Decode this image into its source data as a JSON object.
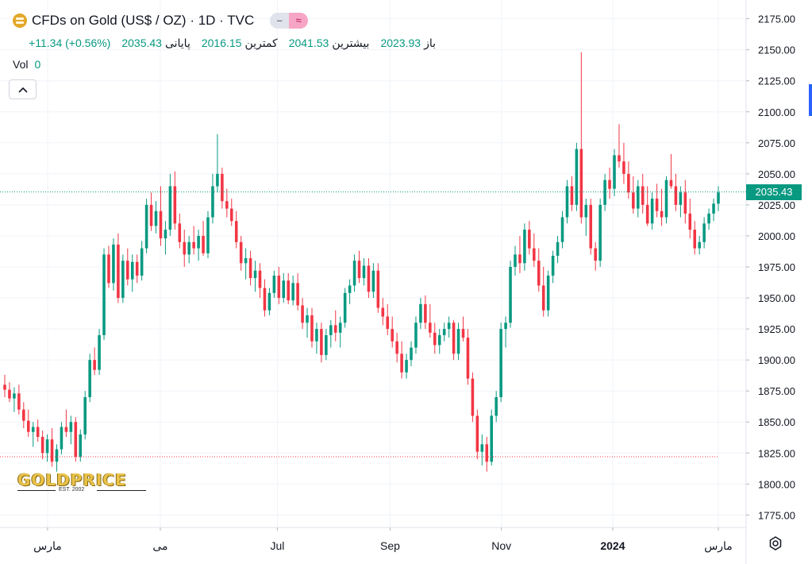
{
  "header": {
    "symbol_title": "CFDs on Gold (US$ / OZ) · 1D · TVC",
    "ohlc": {
      "open_label": "باز",
      "open_value": "2023.93",
      "high_label": "بیشترین",
      "high_value": "2041.53",
      "low_label": "کمترین",
      "low_value": "2016.15",
      "close_label": "پایانی",
      "close_value": "2035.43",
      "change": "+11.34 (+0.56%)"
    },
    "vol_label": "Vol",
    "vol_value": "0",
    "collapse_icon": "chevron-up-icon"
  },
  "price_tag": "2035.43",
  "watermark": {
    "word": "GOLDPRICE",
    "est": "EST. 2002"
  },
  "colors": {
    "up": "#089981",
    "down": "#f23645",
    "grid": "#f0f3fa",
    "text": "#131722"
  },
  "chart_data": {
    "type": "candlestick",
    "y_ticks": [
      "2175.00",
      "2150.00",
      "2125.00",
      "2100.00",
      "2075.00",
      "2050.00",
      "2025.00",
      "2000.00",
      "1975.00",
      "1950.00",
      "1925.00",
      "1900.00",
      "1875.00",
      "1850.00",
      "1825.00",
      "1800.00",
      "1775.00"
    ],
    "ylim": [
      1765,
      2185
    ],
    "x_ticks": [
      {
        "label": "مارس",
        "t": 0.06
      },
      {
        "label": "می",
        "t": 0.218
      },
      {
        "label": "Jul",
        "t": 0.382
      },
      {
        "label": "Sep",
        "t": 0.54
      },
      {
        "label": "Nov",
        "t": 0.696
      },
      {
        "label": "2024",
        "t": 0.852,
        "bold": true
      },
      {
        "label": "مارس",
        "t": 1.0
      }
    ],
    "last_price": 2035.43,
    "low_marker": 1822,
    "candles": [
      [
        1880,
        1888,
        1870,
        1876
      ],
      [
        1876,
        1882,
        1866,
        1869
      ],
      [
        1869,
        1878,
        1858,
        1873
      ],
      [
        1873,
        1880,
        1856,
        1860
      ],
      [
        1860,
        1866,
        1845,
        1851
      ],
      [
        1851,
        1860,
        1838,
        1842
      ],
      [
        1842,
        1850,
        1830,
        1846
      ],
      [
        1846,
        1852,
        1834,
        1838
      ],
      [
        1838,
        1843,
        1820,
        1825
      ],
      [
        1825,
        1840,
        1818,
        1836
      ],
      [
        1836,
        1845,
        1814,
        1818
      ],
      [
        1818,
        1832,
        1810,
        1828
      ],
      [
        1828,
        1850,
        1824,
        1846
      ],
      [
        1846,
        1860,
        1838,
        1842
      ],
      [
        1842,
        1855,
        1832,
        1850
      ],
      [
        1850,
        1854,
        1818,
        1822
      ],
      [
        1822,
        1844,
        1818,
        1840
      ],
      [
        1840,
        1875,
        1836,
        1870
      ],
      [
        1870,
        1905,
        1866,
        1900
      ],
      [
        1900,
        1910,
        1888,
        1892
      ],
      [
        1892,
        1925,
        1888,
        1920
      ],
      [
        1920,
        1990,
        1916,
        1985
      ],
      [
        1985,
        1992,
        1958,
        1962
      ],
      [
        1962,
        1998,
        1956,
        1993
      ],
      [
        1993,
        2002,
        1946,
        1950
      ],
      [
        1950,
        1985,
        1946,
        1980
      ],
      [
        1980,
        1990,
        1960,
        1965
      ],
      [
        1965,
        1985,
        1955,
        1979
      ],
      [
        1979,
        1985,
        1962,
        1968
      ],
      [
        1968,
        1996,
        1964,
        1990
      ],
      [
        1990,
        2030,
        1986,
        2025
      ],
      [
        2025,
        2035,
        2004,
        2008
      ],
      [
        2008,
        2028,
        2002,
        2020
      ],
      [
        2020,
        2040,
        1992,
        1998
      ],
      [
        1998,
        2012,
        1985,
        2005
      ],
      [
        2005,
        2050,
        2000,
        2040
      ],
      [
        2040,
        2052,
        2005,
        2010
      ],
      [
        2010,
        2018,
        1990,
        1995
      ],
      [
        1995,
        2005,
        1975,
        1985
      ],
      [
        1985,
        2000,
        1978,
        1995
      ],
      [
        1995,
        2008,
        1985,
        1990
      ],
      [
        1990,
        2005,
        1980,
        2000
      ],
      [
        2000,
        2012,
        1984,
        1986
      ],
      [
        1986,
        2020,
        1982,
        2015
      ],
      [
        2015,
        2050,
        2010,
        2040
      ],
      [
        2040,
        2082,
        2035,
        2050
      ],
      [
        2050,
        2055,
        2022,
        2028
      ],
      [
        2028,
        2038,
        2015,
        2022
      ],
      [
        2022,
        2030,
        2008,
        2012
      ],
      [
        2012,
        2020,
        1990,
        1995
      ],
      [
        1995,
        2000,
        1972,
        1978
      ],
      [
        1978,
        1990,
        1965,
        1982
      ],
      [
        1982,
        1988,
        1960,
        1966
      ],
      [
        1966,
        1980,
        1955,
        1972
      ],
      [
        1972,
        1978,
        1950,
        1958
      ],
      [
        1958,
        1965,
        1935,
        1940
      ],
      [
        1940,
        1958,
        1936,
        1954
      ],
      [
        1954,
        1972,
        1950,
        1968
      ],
      [
        1968,
        1975,
        1945,
        1950
      ],
      [
        1950,
        1970,
        1946,
        1964
      ],
      [
        1964,
        1970,
        1945,
        1948
      ],
      [
        1948,
        1968,
        1944,
        1962
      ],
      [
        1962,
        1970,
        1940,
        1944
      ],
      [
        1944,
        1950,
        1925,
        1930
      ],
      [
        1930,
        1942,
        1918,
        1936
      ],
      [
        1936,
        1942,
        1910,
        1915
      ],
      [
        1915,
        1930,
        1905,
        1925
      ],
      [
        1925,
        1930,
        1898,
        1904
      ],
      [
        1904,
        1925,
        1900,
        1920
      ],
      [
        1920,
        1932,
        1910,
        1928
      ],
      [
        1928,
        1940,
        1915,
        1922
      ],
      [
        1922,
        1935,
        1910,
        1930
      ],
      [
        1930,
        1958,
        1926,
        1954
      ],
      [
        1954,
        1965,
        1945,
        1960
      ],
      [
        1960,
        1985,
        1955,
        1980
      ],
      [
        1980,
        1988,
        1962,
        1966
      ],
      [
        1966,
        1982,
        1960,
        1976
      ],
      [
        1976,
        1982,
        1950,
        1955
      ],
      [
        1955,
        1978,
        1950,
        1972
      ],
      [
        1972,
        1978,
        1938,
        1942
      ],
      [
        1942,
        1950,
        1928,
        1935
      ],
      [
        1935,
        1945,
        1920,
        1925
      ],
      [
        1925,
        1935,
        1910,
        1915
      ],
      [
        1915,
        1922,
        1898,
        1905
      ],
      [
        1905,
        1915,
        1885,
        1890
      ],
      [
        1890,
        1905,
        1885,
        1900
      ],
      [
        1900,
        1915,
        1895,
        1910
      ],
      [
        1910,
        1935,
        1905,
        1930
      ],
      [
        1930,
        1950,
        1925,
        1945
      ],
      [
        1945,
        1952,
        1925,
        1930
      ],
      [
        1930,
        1945,
        1918,
        1922
      ],
      [
        1922,
        1930,
        1905,
        1912
      ],
      [
        1912,
        1925,
        1905,
        1920
      ],
      [
        1920,
        1930,
        1915,
        1925
      ],
      [
        1925,
        1935,
        1918,
        1930
      ],
      [
        1930,
        1932,
        1900,
        1905
      ],
      [
        1905,
        1930,
        1900,
        1925
      ],
      [
        1925,
        1935,
        1915,
        1918
      ],
      [
        1918,
        1925,
        1880,
        1885
      ],
      [
        1885,
        1890,
        1850,
        1855
      ],
      [
        1855,
        1860,
        1820,
        1826
      ],
      [
        1826,
        1840,
        1815,
        1832
      ],
      [
        1832,
        1838,
        1810,
        1818
      ],
      [
        1818,
        1860,
        1815,
        1855
      ],
      [
        1855,
        1875,
        1850,
        1870
      ],
      [
        1870,
        1930,
        1866,
        1925
      ],
      [
        1925,
        1935,
        1910,
        1930
      ],
      [
        1930,
        1980,
        1926,
        1975
      ],
      [
        1975,
        1992,
        1968,
        1985
      ],
      [
        1985,
        2000,
        1970,
        1978
      ],
      [
        1978,
        2010,
        1972,
        2005
      ],
      [
        2005,
        2012,
        1985,
        1990
      ],
      [
        1990,
        2002,
        1975,
        1980
      ],
      [
        1980,
        1990,
        1955,
        1960
      ],
      [
        1960,
        1975,
        1935,
        1940
      ],
      [
        1940,
        1972,
        1935,
        1968
      ],
      [
        1968,
        1988,
        1962,
        1984
      ],
      [
        1984,
        2000,
        1978,
        1995
      ],
      [
        1995,
        2020,
        1990,
        2015
      ],
      [
        2015,
        2045,
        2010,
        2040
      ],
      [
        2040,
        2048,
        2020,
        2025
      ],
      [
        2025,
        2075,
        2020,
        2070
      ],
      [
        2070,
        2148,
        2010,
        2015
      ],
      [
        2015,
        2030,
        2000,
        2025
      ],
      [
        2025,
        2030,
        1985,
        1990
      ],
      [
        1990,
        1995,
        1972,
        1980
      ],
      [
        1980,
        2030,
        1975,
        2025
      ],
      [
        2025,
        2050,
        2020,
        2045
      ],
      [
        2045,
        2055,
        2030,
        2038
      ],
      [
        2038,
        2070,
        2032,
        2065
      ],
      [
        2065,
        2090,
        2055,
        2060
      ],
      [
        2060,
        2075,
        2042,
        2050
      ],
      [
        2050,
        2060,
        2030,
        2035
      ],
      [
        2035,
        2048,
        2018,
        2022
      ],
      [
        2022,
        2045,
        2015,
        2040
      ],
      [
        2040,
        2050,
        2018,
        2025
      ],
      [
        2025,
        2040,
        2008,
        2010
      ],
      [
        2010,
        2035,
        2005,
        2030
      ],
      [
        2030,
        2042,
        2015,
        2020
      ],
      [
        2020,
        2038,
        2008,
        2015
      ],
      [
        2015,
        2048,
        2010,
        2045
      ],
      [
        2045,
        2066,
        2038,
        2040
      ],
      [
        2040,
        2050,
        2020,
        2025
      ],
      [
        2025,
        2040,
        2015,
        2035
      ],
      [
        2035,
        2045,
        2010,
        2018
      ],
      [
        2018,
        2030,
        1998,
        2005
      ],
      [
        2005,
        2012,
        1985,
        1990
      ],
      [
        1990,
        2000,
        1985,
        1995
      ],
      [
        1995,
        2015,
        1990,
        2010
      ],
      [
        2010,
        2022,
        2005,
        2018
      ],
      [
        2018,
        2030,
        2012,
        2026
      ],
      [
        2026,
        2040,
        2020,
        2035
      ]
    ]
  }
}
